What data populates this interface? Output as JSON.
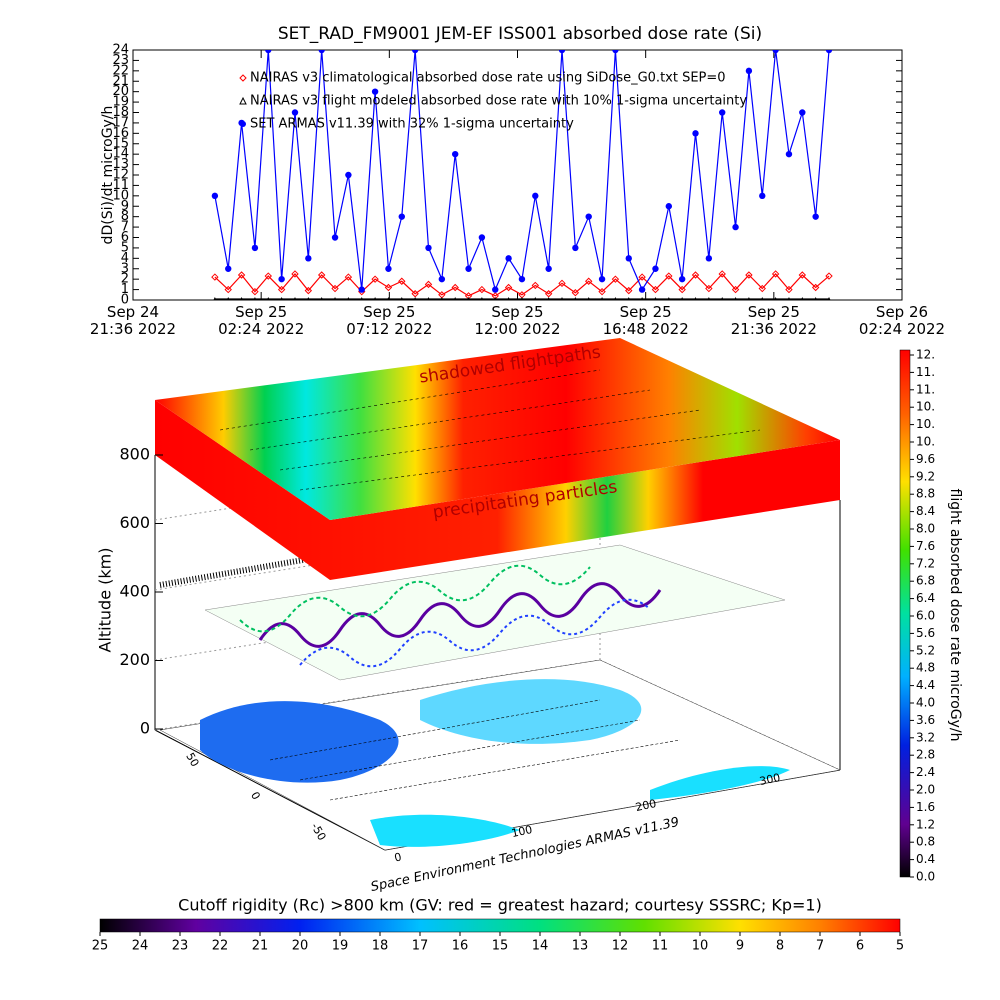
{
  "chart_data": {
    "type": "line",
    "title": "SET_RAD_FM9001  JEM-EF ISS001 absorbed dose rate (Si)",
    "ylabel": "dD(Si)/dt microGy/h",
    "xlim": [
      "2022-09-24T21:36",
      "2022-09-26T02:24"
    ],
    "xticks": [
      {
        "value": "2022-09-24T21:36",
        "label": "Sep 24\n21:36 2022"
      },
      {
        "value": "2022-09-25T02:24",
        "label": "Sep 25\n02:24 2022"
      },
      {
        "value": "2022-09-25T07:12",
        "label": "Sep 25\n07:12 2022"
      },
      {
        "value": "2022-09-25T12:00",
        "label": "Sep 25\n12:00 2022"
      },
      {
        "value": "2022-09-25T16:48",
        "label": "Sep 25\n16:48 2022"
      },
      {
        "value": "2022-09-25T21:36",
        "label": "Sep 25\n21:36 2022"
      },
      {
        "value": "2022-09-26T02:24",
        "label": "Sep 26\n02:24 2022"
      }
    ],
    "ylim": [
      0,
      24
    ],
    "yticks": [
      0,
      1,
      2,
      3,
      4,
      5,
      6,
      7,
      8,
      9,
      10,
      11,
      12,
      13,
      14,
      15,
      16,
      17,
      18,
      19,
      20,
      21,
      22,
      23,
      24
    ],
    "x": [
      "2022-09-25T00:40",
      "2022-09-25T01:10",
      "2022-09-25T01:40",
      "2022-09-25T02:10",
      "2022-09-25T02:40",
      "2022-09-25T03:10",
      "2022-09-25T03:40",
      "2022-09-25T04:10",
      "2022-09-25T04:40",
      "2022-09-25T05:10",
      "2022-09-25T05:40",
      "2022-09-25T06:10",
      "2022-09-25T06:40",
      "2022-09-25T07:10",
      "2022-09-25T07:40",
      "2022-09-25T08:10",
      "2022-09-25T08:40",
      "2022-09-25T09:10",
      "2022-09-25T09:40",
      "2022-09-25T10:10",
      "2022-09-25T10:40",
      "2022-09-25T11:10",
      "2022-09-25T11:40",
      "2022-09-25T12:10",
      "2022-09-25T12:40",
      "2022-09-25T13:10",
      "2022-09-25T13:40",
      "2022-09-25T14:10",
      "2022-09-25T14:40",
      "2022-09-25T15:10",
      "2022-09-25T15:40",
      "2022-09-25T16:10",
      "2022-09-25T16:40",
      "2022-09-25T17:10",
      "2022-09-25T17:40",
      "2022-09-25T18:10",
      "2022-09-25T18:40",
      "2022-09-25T19:10",
      "2022-09-25T19:40",
      "2022-09-25T20:10",
      "2022-09-25T20:40",
      "2022-09-25T21:10",
      "2022-09-25T21:40",
      "2022-09-25T22:10",
      "2022-09-25T22:40",
      "2022-09-25T23:10",
      "2022-09-25T23:40"
    ],
    "series": [
      {
        "name": "NAIRAS v3 climatological absorbed dose rate using SiDose_G0.txt SEP=0",
        "color": "#ff0000",
        "marker": "diamond",
        "values": [
          2.2,
          1.0,
          2.4,
          0.8,
          2.3,
          1.0,
          2.5,
          0.9,
          2.4,
          1.1,
          2.2,
          0.8,
          2.0,
          1.2,
          1.8,
          0.6,
          1.5,
          0.5,
          1.2,
          0.4,
          1.0,
          0.4,
          1.2,
          0.5,
          1.4,
          0.6,
          1.6,
          0.7,
          1.8,
          0.8,
          2.0,
          0.9,
          2.2,
          1.0,
          2.3,
          1.0,
          2.4,
          1.1,
          2.5,
          1.0,
          2.4,
          1.1,
          2.5,
          1.0,
          2.4,
          1.2,
          2.3
        ]
      },
      {
        "name": "NAIRAS v3 flight modeled absorbed dose rate with 10% 1-sigma uncertainty",
        "color": "#000000",
        "marker": "triangle",
        "values": [
          0.1,
          0.1,
          0.1,
          0.1,
          0.1,
          0.1,
          0.1,
          0.1,
          0.1,
          0.1,
          0.1,
          0.1,
          0.1,
          0.1,
          0.1,
          0.1,
          0.1,
          0.1,
          0.1,
          0.1,
          0.1,
          0.1,
          0.1,
          0.1,
          0.1,
          0.1,
          0.1,
          0.1,
          0.1,
          0.1,
          0.1,
          0.1,
          0.1,
          0.1,
          0.1,
          0.1,
          0.1,
          0.1,
          0.1,
          0.1,
          0.1,
          0.1,
          0.1,
          0.1,
          0.1,
          0.1,
          0.1
        ]
      },
      {
        "name": "SET ARMAS v11.39 with 32% 1-sigma uncertainty",
        "color": "#0000ff",
        "marker": "circle",
        "values": [
          10,
          3,
          17,
          5,
          24,
          2,
          18,
          4,
          24,
          6,
          12,
          1,
          20,
          3,
          8,
          24,
          5,
          2,
          14,
          3,
          6,
          1,
          4,
          2,
          10,
          3,
          24,
          5,
          8,
          2,
          24,
          4,
          1,
          3,
          9,
          2,
          16,
          4,
          18,
          7,
          22,
          10,
          24,
          14,
          18,
          8,
          24
        ]
      }
    ],
    "scene": {
      "annotations": [
        "shadowed flightpaths",
        "precipitating particles"
      ],
      "zlabel": "Altitude (km)",
      "zlim": [
        0,
        800
      ],
      "zticks": [
        0,
        200,
        400,
        600,
        800
      ],
      "lat_ticks": [
        50,
        0,
        -50
      ],
      "lon_ticks": [
        0,
        100,
        200,
        300
      ],
      "credit": "Space Environment Technologies ARMAS v11.39"
    },
    "dose_colorbar": {
      "label": "flight absorbed dose rate microGy/h",
      "lim": [
        0,
        12
      ],
      "ticks": [
        {
          "value": 0,
          "label": "0.0"
        },
        {
          "value": 0.4,
          "label": "0.4"
        },
        {
          "value": 0.8,
          "label": "0.8"
        },
        {
          "value": 1.2,
          "label": "1.2"
        },
        {
          "value": 1.6,
          "label": "1.6"
        },
        {
          "value": 2.0,
          "label": "2.0"
        },
        {
          "value": 2.4,
          "label": "2.4"
        },
        {
          "value": 2.8,
          "label": "2.8"
        },
        {
          "value": 3.2,
          "label": "3.2"
        },
        {
          "value": 3.6,
          "label": "3.6"
        },
        {
          "value": 4.0,
          "label": "4.0"
        },
        {
          "value": 4.4,
          "label": "4.4"
        },
        {
          "value": 4.8,
          "label": "4.8"
        },
        {
          "value": 5.2,
          "label": "5.2"
        },
        {
          "value": 5.6,
          "label": "5.6"
        },
        {
          "value": 6.0,
          "label": "6.0"
        },
        {
          "value": 6.4,
          "label": "6.4"
        },
        {
          "value": 6.8,
          "label": "6.8"
        },
        {
          "value": 7.2,
          "label": "7.2"
        },
        {
          "value": 7.6,
          "label": "7.6"
        },
        {
          "value": 8.0,
          "label": "8.0"
        },
        {
          "value": 8.4,
          "label": "8.4"
        },
        {
          "value": 8.8,
          "label": "8.8"
        },
        {
          "value": 9.2,
          "label": "9.2"
        },
        {
          "value": 9.6,
          "label": "9.6"
        },
        {
          "value": 10.0,
          "label": "10."
        },
        {
          "value": 10.4,
          "label": "10."
        },
        {
          "value": 10.8,
          "label": "10."
        },
        {
          "value": 11.2,
          "label": "11."
        },
        {
          "value": 11.6,
          "label": "11."
        },
        {
          "value": 12.0,
          "label": "12."
        }
      ]
    },
    "rigidity_colorbar": {
      "title": "Cutoff rigidity (Rc) >800 km (GV: red = greatest hazard; courtesy SSSRC; Kp=1)",
      "lim": [
        25,
        5
      ],
      "ticks": [
        25,
        24,
        23,
        22,
        21,
        20,
        19,
        18,
        17,
        16,
        15,
        14,
        13,
        12,
        11,
        10,
        9,
        8,
        7,
        6,
        5
      ]
    }
  }
}
